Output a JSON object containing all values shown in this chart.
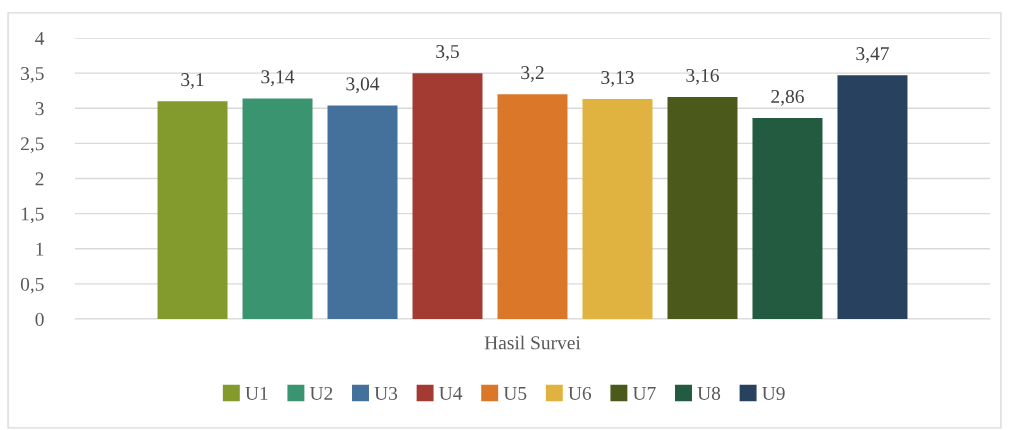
{
  "chart_data": {
    "type": "bar",
    "categories": [
      "Hasil Survei"
    ],
    "series": [
      {
        "name": "U1",
        "color": "#839a2c",
        "values": [
          3.1
        ],
        "value_labels": [
          "3,1"
        ]
      },
      {
        "name": "U2",
        "color": "#3a9470",
        "values": [
          3.14
        ],
        "value_labels": [
          "3,14"
        ]
      },
      {
        "name": "U3",
        "color": "#44709c",
        "values": [
          3.04
        ],
        "value_labels": [
          "3,04"
        ]
      },
      {
        "name": "U4",
        "color": "#a33b33",
        "values": [
          3.5
        ],
        "value_labels": [
          "3,5"
        ]
      },
      {
        "name": "U5",
        "color": "#da7729",
        "values": [
          3.2
        ],
        "value_labels": [
          "3,2"
        ]
      },
      {
        "name": "U6",
        "color": "#e0b23f",
        "values": [
          3.13
        ],
        "value_labels": [
          "3,13"
        ]
      },
      {
        "name": "U7",
        "color": "#4b5a1a",
        "values": [
          3.16
        ],
        "value_labels": [
          "3,16"
        ]
      },
      {
        "name": "U8",
        "color": "#225b40",
        "values": [
          2.86
        ],
        "value_labels": [
          "2,86"
        ]
      },
      {
        "name": "U9",
        "color": "#27415e",
        "values": [
          3.47
        ],
        "value_labels": [
          "3,47"
        ]
      }
    ],
    "ylim": [
      0,
      4
    ],
    "yticks": [
      0,
      {
        "value": 0.5,
        "label": "0,5"
      },
      1,
      {
        "value": 1.5,
        "label": "1,5"
      },
      2,
      {
        "value": 2.5,
        "label": "2,5"
      },
      3,
      {
        "value": 3.5,
        "label": "3,5"
      },
      4
    ],
    "grid": "y",
    "legend": "bottom"
  }
}
